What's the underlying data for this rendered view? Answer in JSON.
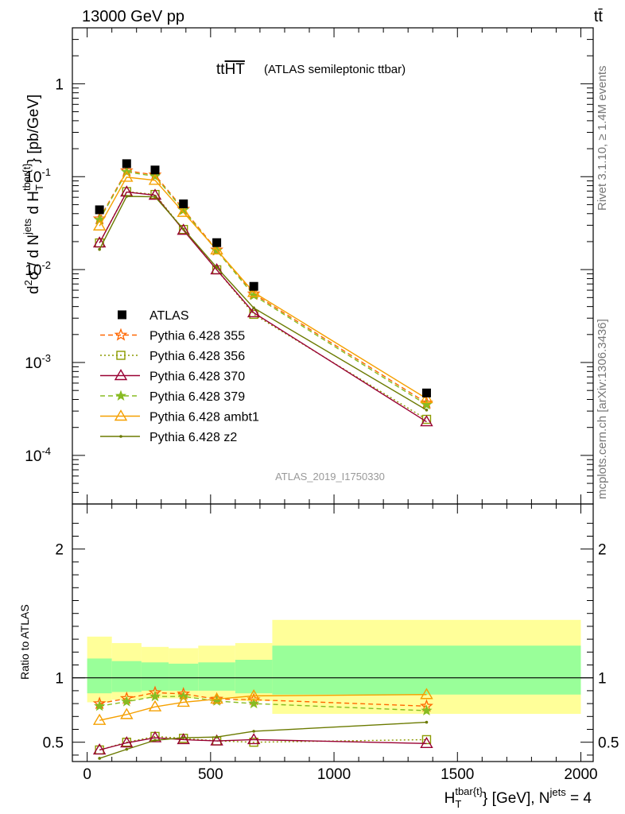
{
  "header": {
    "energy_label": "13000 GeV pp",
    "process_label": "tt̄"
  },
  "side_labels": {
    "rivet": "Rivet 3.1.10, ≥ 1.4M events",
    "mcplots": "mcplots.cern.ch [arXiv:1306.3436]"
  },
  "chart_data": {
    "type": "line",
    "title_main": "ttHT",
    "title_overline": "HT",
    "title_sub": "(ATLAS semileptonic ttbar)",
    "analysis_id": "ATLAS_2019_I1750330",
    "ylabel": "d²σ / d N^jets d H_T^{tbar{t}} [pb/GeV]",
    "ratio_ylabel": "Ratio to ATLAS",
    "xlabel": "H_T^{tbar{t}} [GeV], N^jets = 4",
    "xlim": [
      -60,
      2050
    ],
    "ylim": [
      3e-05,
      4
    ],
    "yscale": "log",
    "ratio_ylim": [
      0.35,
      2.35
    ],
    "x_ticks": [
      "0",
      "500",
      "1000",
      "1500",
      "2000"
    ],
    "y_ticks": [
      "10^-4",
      "10^-3",
      "10^-2",
      "10^-1",
      "1"
    ],
    "ratio_ticks": [
      "0.5",
      "1",
      "2"
    ],
    "legend_position": "lower-left",
    "bins": [
      [
        0,
        100
      ],
      [
        100,
        220
      ],
      [
        220,
        330
      ],
      [
        330,
        450
      ],
      [
        450,
        600
      ],
      [
        600,
        750
      ],
      [
        750,
        2000
      ]
    ],
    "x": [
      50,
      160,
      275,
      390,
      525,
      675,
      1375
    ],
    "data": {
      "name": "ATLAS",
      "values": [
        0.044,
        0.138,
        0.118,
        0.051,
        0.0195,
        0.0066,
        0.00047
      ]
    },
    "band_inner": [
      [
        0.88,
        1.15
      ],
      [
        0.89,
        1.13
      ],
      [
        0.9,
        1.12
      ],
      [
        0.9,
        1.11
      ],
      [
        0.9,
        1.12
      ],
      [
        0.88,
        1.14
      ],
      [
        0.87,
        1.25
      ]
    ],
    "band_outer": [
      [
        0.81,
        1.32
      ],
      [
        0.83,
        1.27
      ],
      [
        0.84,
        1.24
      ],
      [
        0.84,
        1.23
      ],
      [
        0.84,
        1.25
      ],
      [
        0.82,
        1.27
      ],
      [
        0.72,
        1.45
      ]
    ],
    "series": [
      {
        "name": "Pythia 6.428 355",
        "color": "#ff6600",
        "dash": "6,4",
        "marker": "star-open",
        "ratio": [
          0.8,
          0.84,
          0.885,
          0.875,
          0.835,
          0.83,
          0.78
        ]
      },
      {
        "name": "Pythia 6.428 356",
        "color": "#8c9a00",
        "dash": "2,3",
        "marker": "square-open",
        "ratio": [
          0.44,
          0.5,
          0.545,
          0.53,
          0.51,
          0.5,
          0.52
        ]
      },
      {
        "name": "Pythia 6.428 370",
        "color": "#990033",
        "dash": "",
        "marker": "triangle-open",
        "ratio": [
          0.44,
          0.495,
          0.535,
          0.52,
          0.51,
          0.52,
          0.49
        ]
      },
      {
        "name": "Pythia 6.428 379",
        "color": "#88bb22",
        "dash": "6,4",
        "marker": "star-filled",
        "ratio": [
          0.78,
          0.815,
          0.855,
          0.855,
          0.82,
          0.8,
          0.745
        ]
      },
      {
        "name": "Pythia 6.428 ambt1",
        "color": "#f5a000",
        "dash": "",
        "marker": "triangle-open",
        "ratio": [
          0.67,
          0.715,
          0.775,
          0.81,
          0.835,
          0.86,
          0.87
        ]
      },
      {
        "name": "Pythia 6.428 z2",
        "color": "#6b7a00",
        "dash": "",
        "marker": "dot",
        "ratio": [
          0.375,
          0.445,
          0.515,
          0.535,
          0.54,
          0.585,
          0.655
        ]
      }
    ]
  }
}
